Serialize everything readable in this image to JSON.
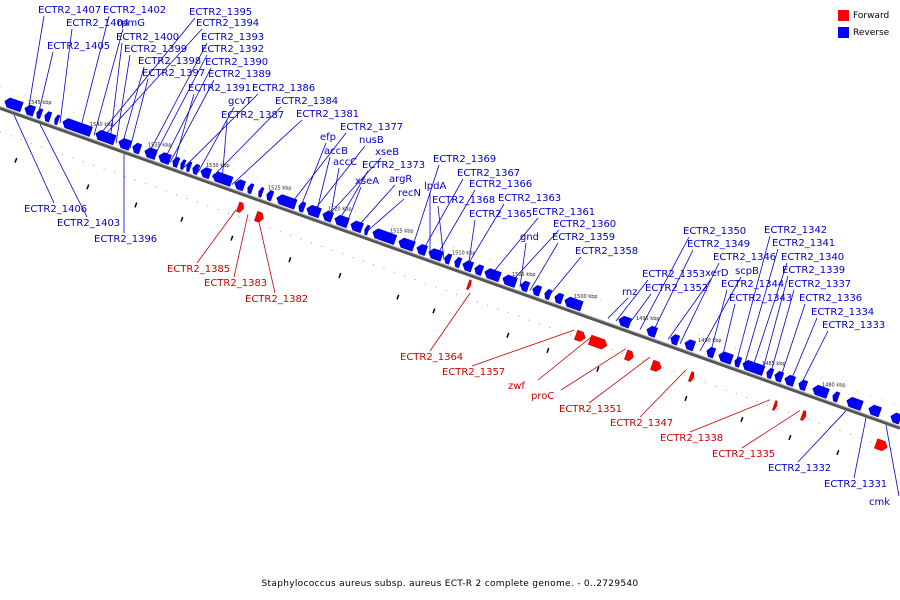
{
  "legend": {
    "forward": {
      "label": "Forward",
      "color": "#ff0000"
    },
    "reverse": {
      "label": "Reverse",
      "color": "#0000ff"
    }
  },
  "caption": "Staphylococcus aureus subsp. aureus ECT-R 2 complete genome. - 0..2729540",
  "ticks": [
    "1545 kbp",
    "1540 kbp",
    "1535 kbp",
    "1530 kbp",
    "1525 kbp",
    "1520 kbp",
    "1515 kbp",
    "1510 kbp",
    "1505 kbp",
    "1500 kbp",
    "1495 kbp",
    "1490 kbp",
    "1485 kbp",
    "1480 kbp"
  ],
  "reverse_labels_above": [
    "ECTR2_1407",
    "ECTR2_1402",
    "ECTR2_1395",
    "ECTR2_1404",
    "rpmG",
    "ECTR2_1394",
    "ECTR2_1405",
    "ECTR2_1400",
    "ECTR2_1393",
    "ECTR2_1399",
    "ECTR2_1392",
    "ECTR2_1398",
    "ECTR2_1390",
    "ECTR2_1397",
    "ECTR2_1389",
    "ECTR2_1391",
    "ECTR2_1386",
    "gcvT",
    "ECTR2_1384",
    "ECTR2_1387",
    "ECTR2_1381",
    "ECTR2_1377",
    "efp",
    "nusB",
    "accB",
    "xseB",
    "accC",
    "ECTR2_1373",
    "xseA",
    "argR",
    "recN",
    "ECTR2_1369",
    "ECTR2_1367",
    "lpdA",
    "ECTR2_1366",
    "ECTR2_1368",
    "ECTR2_1363",
    "ECTR2_1365",
    "ECTR2_1361",
    "ECTR2_1360",
    "gnd",
    "ECTR2_1359",
    "ECTR2_1358",
    "rnz",
    "ECTR2_1353",
    "ECTR2_1352",
    "ECTR2_1350",
    "ECTR2_1349",
    "xerD",
    "ECTR2_1346",
    "scpB",
    "ECTR2_1344",
    "ECTR2_1343",
    "ECTR2_1342",
    "ECTR2_1341",
    "ECTR2_1340",
    "ECTR2_1339",
    "ECTR2_1337",
    "ECTR2_1336",
    "ECTR2_1334",
    "ECTR2_1333"
  ],
  "reverse_labels_below": [
    "ECTR2_1406",
    "ECTR2_1403",
    "ECTR2_1396",
    "ECTR2_1332",
    "ECTR2_1331",
    "cmk"
  ],
  "forward_labels": [
    "ECTR2_1385",
    "ECTR2_1383",
    "ECTR2_1382",
    "ECTR2_1364",
    "ECTR2_1357",
    "zwf",
    "proC",
    "ECTR2_1351",
    "ECTR2_1347",
    "ECTR2_1338",
    "ECTR2_1335"
  ]
}
